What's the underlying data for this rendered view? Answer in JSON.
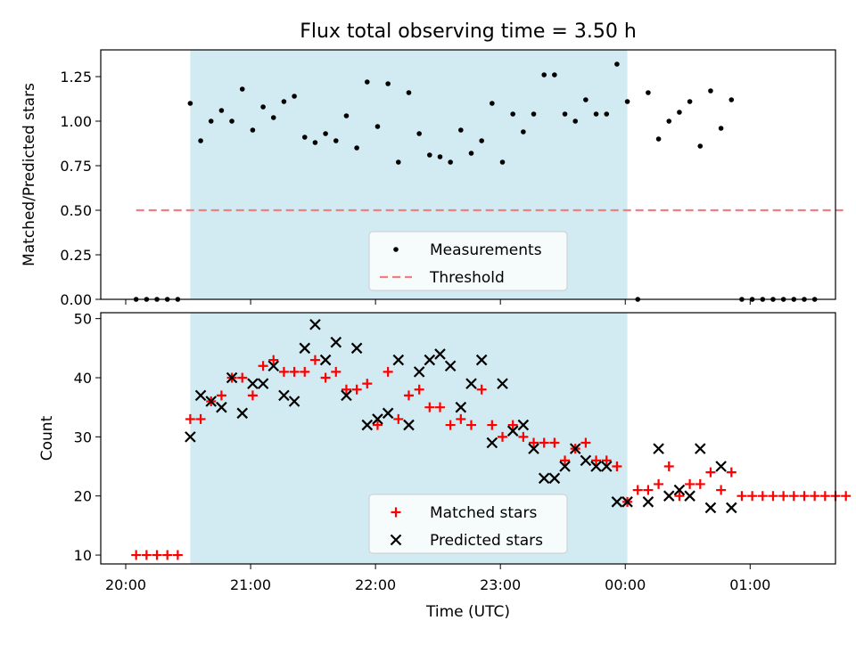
{
  "figure_title": "Flux total observing time = 3.50 h",
  "colors": {
    "shade": "#add8e6",
    "threshold": "#f07f7f",
    "matched": "#ff0000",
    "predicted": "#000000",
    "measurement": "#000000"
  },
  "chart_data": [
    {
      "type": "scatter",
      "panel": "top",
      "title": "Flux total observing time = 3.50 h",
      "xlabel": "",
      "ylabel": "Matched/Predicted stars",
      "ylim": [
        0,
        1.4
      ],
      "yticks": [
        0.0,
        0.25,
        0.5,
        0.75,
        1.0,
        1.25
      ],
      "ytick_labels": [
        "0.00",
        "0.25",
        "0.50",
        "0.75",
        "1.00",
        "1.25"
      ],
      "legend": [
        "Measurements",
        "Threshold"
      ],
      "legend_position": "lower-center",
      "shaded_interval": [
        "20:31",
        "00:01"
      ],
      "threshold": {
        "name": "Threshold",
        "value": 0.5,
        "x_range": [
          "20:05",
          "01:45"
        ]
      },
      "series": [
        {
          "name": "Measurements",
          "points": [
            [
              "20:05",
              0
            ],
            [
              "20:10",
              0
            ],
            [
              "20:15",
              0
            ],
            [
              "20:20",
              0
            ],
            [
              "20:25",
              0
            ],
            [
              "20:31",
              1.1
            ],
            [
              "20:36",
              0.89
            ],
            [
              "20:41",
              1.0
            ],
            [
              "20:46",
              1.06
            ],
            [
              "20:51",
              1.0
            ],
            [
              "20:56",
              1.18
            ],
            [
              "21:01",
              0.95
            ],
            [
              "21:06",
              1.08
            ],
            [
              "21:11",
              1.02
            ],
            [
              "21:16",
              1.11
            ],
            [
              "21:21",
              1.14
            ],
            [
              "21:26",
              0.91
            ],
            [
              "21:31",
              0.88
            ],
            [
              "21:36",
              0.93
            ],
            [
              "21:41",
              0.89
            ],
            [
              "21:46",
              1.03
            ],
            [
              "21:51",
              0.85
            ],
            [
              "21:56",
              1.22
            ],
            [
              "22:01",
              0.97
            ],
            [
              "22:06",
              1.21
            ],
            [
              "22:11",
              0.77
            ],
            [
              "22:16",
              1.16
            ],
            [
              "22:21",
              0.93
            ],
            [
              "22:26",
              0.81
            ],
            [
              "22:31",
              0.8
            ],
            [
              "22:36",
              0.77
            ],
            [
              "22:41",
              0.95
            ],
            [
              "22:46",
              0.82
            ],
            [
              "22:51",
              0.89
            ],
            [
              "22:56",
              1.1
            ],
            [
              "23:01",
              0.77
            ],
            [
              "23:06",
              1.04
            ],
            [
              "23:11",
              0.94
            ],
            [
              "23:16",
              1.04
            ],
            [
              "23:21",
              1.26
            ],
            [
              "23:26",
              1.26
            ],
            [
              "23:31",
              1.04
            ],
            [
              "23:36",
              1.0
            ],
            [
              "23:41",
              1.12
            ],
            [
              "23:46",
              1.04
            ],
            [
              "23:51",
              1.04
            ],
            [
              "23:56",
              1.32
            ],
            [
              "00:01",
              1.11
            ],
            [
              "00:06",
              0
            ],
            [
              "00:11",
              1.16
            ],
            [
              "00:16",
              0.9
            ],
            [
              "00:21",
              1.0
            ],
            [
              "00:26",
              1.05
            ],
            [
              "00:31",
              1.11
            ],
            [
              "00:36",
              0.86
            ],
            [
              "00:41",
              1.17
            ],
            [
              "00:46",
              0.96
            ],
            [
              "00:51",
              1.12
            ],
            [
              "00:56",
              0
            ],
            [
              "01:01",
              0
            ],
            [
              "01:06",
              0
            ],
            [
              "01:11",
              0
            ],
            [
              "01:16",
              0
            ],
            [
              "01:21",
              0
            ],
            [
              "01:26",
              0
            ],
            [
              "01:31",
              0
            ]
          ]
        }
      ]
    },
    {
      "type": "scatter",
      "panel": "bottom",
      "title": "",
      "xlabel": "Time (UTC)",
      "ylabel": "Count",
      "ylim": [
        8.5,
        51
      ],
      "yticks": [
        10,
        20,
        30,
        40,
        50
      ],
      "ytick_labels": [
        "10",
        "20",
        "30",
        "40",
        "50"
      ],
      "xticks": [
        "20:00",
        "21:00",
        "22:00",
        "23:00",
        "00:00",
        "01:00"
      ],
      "legend": [
        "Matched stars",
        "Predicted stars"
      ],
      "legend_position": "lower-center",
      "shaded_interval": [
        "20:31",
        "00:01"
      ],
      "series": [
        {
          "name": "Matched stars",
          "marker": "+",
          "points": [
            [
              "20:05",
              10
            ],
            [
              "20:10",
              10
            ],
            [
              "20:15",
              10
            ],
            [
              "20:20",
              10
            ],
            [
              "20:25",
              10
            ],
            [
              "20:31",
              33
            ],
            [
              "20:36",
              33
            ],
            [
              "20:41",
              36
            ],
            [
              "20:46",
              37
            ],
            [
              "20:51",
              40
            ],
            [
              "20:56",
              40
            ],
            [
              "21:01",
              37
            ],
            [
              "21:06",
              42
            ],
            [
              "21:11",
              43
            ],
            [
              "21:16",
              41
            ],
            [
              "21:21",
              41
            ],
            [
              "21:26",
              41
            ],
            [
              "21:31",
              43
            ],
            [
              "21:36",
              40
            ],
            [
              "21:41",
              41
            ],
            [
              "21:46",
              38
            ],
            [
              "21:51",
              38
            ],
            [
              "21:56",
              39
            ],
            [
              "22:01",
              32
            ],
            [
              "22:06",
              41
            ],
            [
              "22:11",
              33
            ],
            [
              "22:16",
              37
            ],
            [
              "22:21",
              38
            ],
            [
              "22:26",
              35
            ],
            [
              "22:31",
              35
            ],
            [
              "22:36",
              32
            ],
            [
              "22:41",
              33
            ],
            [
              "22:46",
              32
            ],
            [
              "22:51",
              38
            ],
            [
              "22:56",
              32
            ],
            [
              "23:01",
              30
            ],
            [
              "23:06",
              32
            ],
            [
              "23:11",
              30
            ],
            [
              "23:16",
              29
            ],
            [
              "23:21",
              29
            ],
            [
              "23:26",
              29
            ],
            [
              "23:31",
              26
            ],
            [
              "23:36",
              28
            ],
            [
              "23:41",
              29
            ],
            [
              "23:46",
              26
            ],
            [
              "23:51",
              26
            ],
            [
              "23:56",
              25
            ],
            [
              "00:01",
              19
            ],
            [
              "00:06",
              21
            ],
            [
              "00:11",
              21
            ],
            [
              "00:16",
              22
            ],
            [
              "00:21",
              25
            ],
            [
              "00:26",
              20
            ],
            [
              "00:31",
              22
            ],
            [
              "00:36",
              22
            ],
            [
              "00:41",
              24
            ],
            [
              "00:46",
              21
            ],
            [
              "00:51",
              24
            ],
            [
              "00:56",
              20
            ],
            [
              "01:01",
              20
            ],
            [
              "01:06",
              20
            ],
            [
              "01:11",
              20
            ],
            [
              "01:16",
              20
            ],
            [
              "01:21",
              20
            ],
            [
              "01:26",
              20
            ],
            [
              "01:31",
              20
            ],
            [
              "01:36",
              20
            ],
            [
              "01:41",
              20
            ],
            [
              "01:46",
              20
            ]
          ]
        },
        {
          "name": "Predicted stars",
          "marker": "x",
          "points": [
            [
              "20:31",
              30
            ],
            [
              "20:36",
              37
            ],
            [
              "20:41",
              36
            ],
            [
              "20:46",
              35
            ],
            [
              "20:51",
              40
            ],
            [
              "20:56",
              34
            ],
            [
              "21:01",
              39
            ],
            [
              "21:06",
              39
            ],
            [
              "21:11",
              42
            ],
            [
              "21:16",
              37
            ],
            [
              "21:21",
              36
            ],
            [
              "21:26",
              45
            ],
            [
              "21:31",
              49
            ],
            [
              "21:36",
              43
            ],
            [
              "21:41",
              46
            ],
            [
              "21:46",
              37
            ],
            [
              "21:51",
              45
            ],
            [
              "21:56",
              32
            ],
            [
              "22:01",
              33
            ],
            [
              "22:06",
              34
            ],
            [
              "22:11",
              43
            ],
            [
              "22:16",
              32
            ],
            [
              "22:21",
              41
            ],
            [
              "22:26",
              43
            ],
            [
              "22:31",
              44
            ],
            [
              "22:36",
              42
            ],
            [
              "22:41",
              35
            ],
            [
              "22:46",
              39
            ],
            [
              "22:51",
              43
            ],
            [
              "22:56",
              29
            ],
            [
              "23:01",
              39
            ],
            [
              "23:06",
              31
            ],
            [
              "23:11",
              32
            ],
            [
              "23:16",
              28
            ],
            [
              "23:21",
              23
            ],
            [
              "23:26",
              23
            ],
            [
              "23:31",
              25
            ],
            [
              "23:36",
              28
            ],
            [
              "23:41",
              26
            ],
            [
              "23:46",
              25
            ],
            [
              "23:51",
              25
            ],
            [
              "23:56",
              19
            ],
            [
              "00:01",
              19
            ],
            [
              "00:11",
              19
            ],
            [
              "00:16",
              28
            ],
            [
              "00:21",
              20
            ],
            [
              "00:26",
              21
            ],
            [
              "00:31",
              20
            ],
            [
              "00:36",
              28
            ],
            [
              "00:41",
              18
            ],
            [
              "00:46",
              25
            ],
            [
              "00:51",
              18
            ]
          ]
        }
      ]
    }
  ]
}
